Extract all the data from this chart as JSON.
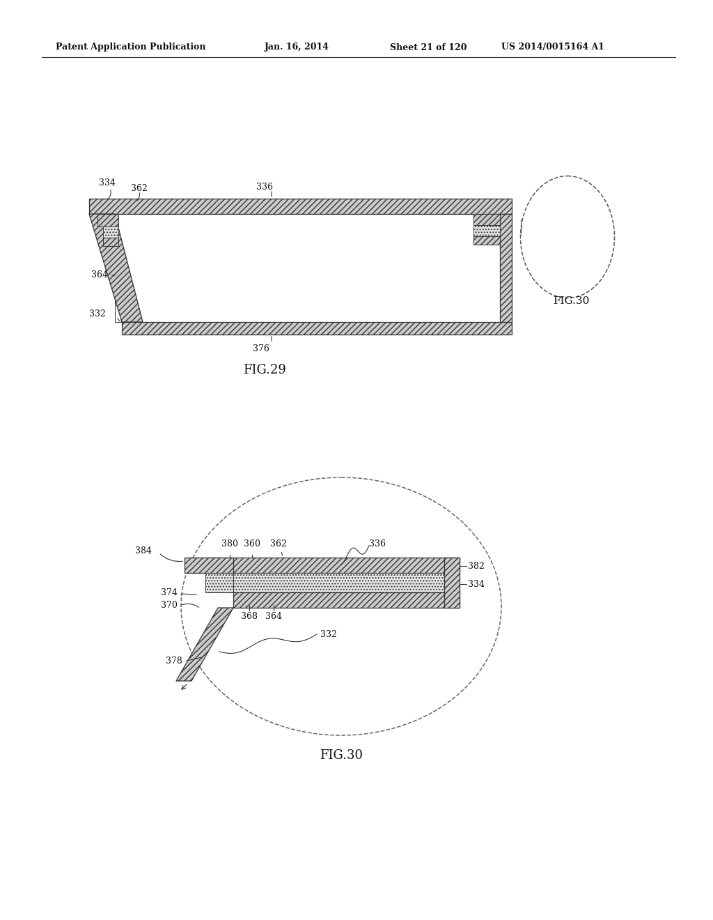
{
  "bg_color": "#ffffff",
  "header_text": "Patent Application Publication",
  "header_date": "Jan. 16, 2014",
  "header_sheet": "Sheet 21 of 120",
  "header_patent": "US 2014/0015164 A1",
  "fig29_label": "FIG.29",
  "fig30_label": "FIG.30",
  "fig30_callout": "FIG.30",
  "line_color": "#333333",
  "hatch_fc": "#cccccc",
  "dot_fc": "#e8e8e8"
}
